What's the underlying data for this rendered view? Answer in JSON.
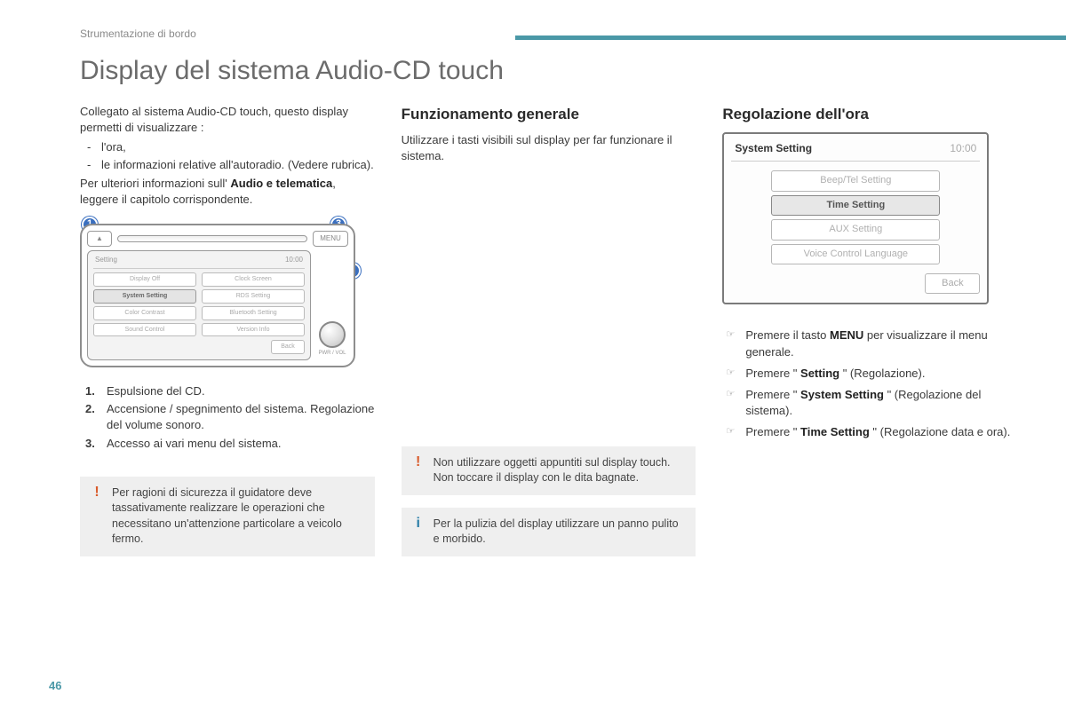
{
  "header": {
    "breadcrumb": "Strumentazione di bordo"
  },
  "title": "Display del sistema Audio-CD touch",
  "page_number": "46",
  "accent_bar_color": "#4a98a7",
  "col1": {
    "intro": "Collegato al sistema Audio-CD touch, questo display permetti di visualizzare :",
    "bullets": [
      "l'ora,",
      "le informazioni relative all'autoradio. (Vedere rubrica)."
    ],
    "more_pre": "Per ulteriori informazioni sull' ",
    "more_bold": "Audio e telematica",
    "more_post": ", leggere il capitolo corrispondente.",
    "diagram": {
      "callouts": [
        "1",
        "2",
        "3"
      ],
      "menu_btn": "MENU",
      "screen_title": "Setting",
      "screen_time": "10:00",
      "items": [
        "Display Off",
        "Clock Screen",
        "System Setting",
        "RDS Setting",
        "Color Contrast",
        "Bluetooth Setting",
        "Sound Control",
        "Version Info"
      ],
      "selected_index": 2,
      "back_label": "Back",
      "dial_label": "PWR / VOL"
    },
    "legend": [
      "Espulsione del CD.",
      "Accensione / spegnimento del sistema. Regolazione del volume sonoro.",
      "Accesso ai vari menu del sistema."
    ],
    "warn": "Per ragioni di sicurezza il guidatore deve tassativamente realizzare le operazioni che necessitano un'attenzione particolare a veicolo fermo."
  },
  "col2": {
    "heading": "Funzionamento generale",
    "text": "Utilizzare i tasti visibili sul display per far funzionare il sistema.",
    "warn_lines": [
      "Non utilizzare oggetti appuntiti sul display touch.",
      "Non toccare il display con le dita bagnate."
    ],
    "info": "Per la pulizia del display utilizzare un panno pulito e morbido."
  },
  "col3": {
    "heading": "Regolazione dell'ora",
    "panel": {
      "title": "System Setting",
      "time": "10:00",
      "items": [
        "Beep/Tel Setting",
        "Time Setting",
        "AUX Setting",
        "Voice Control Language"
      ],
      "selected_index": 1,
      "back_label": "Back"
    },
    "steps": [
      {
        "pre": "Premere il tasto ",
        "bold": "MENU",
        "post": " per visualizzare il menu generale."
      },
      {
        "pre": "Premere \" ",
        "bold": "Setting",
        "post": " \" (Regolazione)."
      },
      {
        "pre": "Premere \" ",
        "bold": "System Setting",
        "post": " \" (Regolazione del sistema)."
      },
      {
        "pre": "Premere \" ",
        "bold": "Time Setting",
        "post": " \" (Regolazione data e ora)."
      }
    ]
  }
}
